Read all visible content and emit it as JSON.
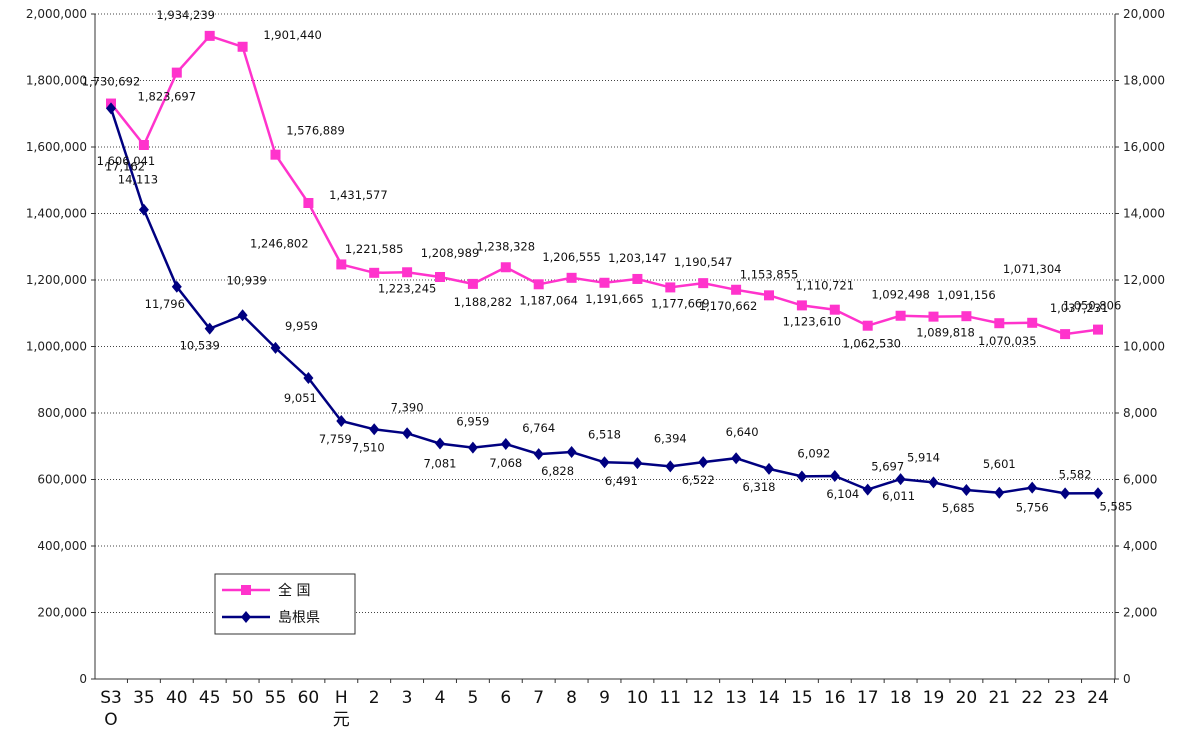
{
  "chart_data": {
    "type": "line",
    "title": "",
    "xlabel": "",
    "ylabel": "",
    "categories": [
      "S30",
      "35",
      "40",
      "45",
      "50",
      "55",
      "60",
      "H元",
      "2",
      "3",
      "4",
      "5",
      "6",
      "7",
      "8",
      "9",
      "10",
      "11",
      "12",
      "13",
      "14",
      "15",
      "16",
      "17",
      "18",
      "19",
      "20",
      "21",
      "22",
      "23",
      "24"
    ],
    "category_display": [
      [
        "S3",
        "O"
      ],
      [
        "35"
      ],
      [
        "40"
      ],
      [
        "45"
      ],
      [
        "50"
      ],
      [
        "55"
      ],
      [
        "60"
      ],
      [
        "H",
        "元"
      ],
      [
        "2"
      ],
      [
        "3"
      ],
      [
        "4"
      ],
      [
        "5"
      ],
      [
        "6"
      ],
      [
        "7"
      ],
      [
        "8"
      ],
      [
        "9"
      ],
      [
        "10"
      ],
      [
        "11"
      ],
      [
        "12"
      ],
      [
        "13"
      ],
      [
        "14"
      ],
      [
        "15"
      ],
      [
        "16"
      ],
      [
        "17"
      ],
      [
        "18"
      ],
      [
        "19"
      ],
      [
        "20"
      ],
      [
        "21"
      ],
      [
        "22"
      ],
      [
        "23"
      ],
      [
        "24"
      ]
    ],
    "y_left": {
      "min": 0,
      "max": 2000000,
      "step": 200000,
      "ticks": [
        "0",
        "200,000",
        "400,000",
        "600,000",
        "800,000",
        "1,000,000",
        "1,200,000",
        "1,400,000",
        "1,600,000",
        "1,800,000",
        "2,000,000"
      ]
    },
    "y_right": {
      "min": 0,
      "max": 20000,
      "step": 2000,
      "ticks": [
        "0",
        "2,000",
        "4,000",
        "6,000",
        "8,000",
        "10,000",
        "12,000",
        "14,000",
        "16,000",
        "18,000",
        "20,000"
      ]
    },
    "grid": "horizontal-dotted",
    "legend_position": "bottom-left",
    "series": [
      {
        "name": "全 国",
        "axis": "left",
        "color": "#ff33cc",
        "marker": "square",
        "values": [
          1730692,
          1606041,
          1823697,
          1934239,
          1901440,
          1576889,
          1431577,
          1246802,
          1221585,
          1223245,
          1208989,
          1188282,
          1238328,
          1187064,
          1206555,
          1191665,
          1203147,
          1177669,
          1190547,
          1170662,
          1153855,
          1123610,
          1110721,
          1062530,
          1092498,
          1089818,
          1091156,
          1070035,
          1071304,
          1037231,
          1050806
        ],
        "labels": [
          "1,730,692",
          "1,606,041",
          "1,823,697",
          "1,934,239",
          "1,901,440",
          "1,576,889",
          "1,431,577",
          "1,246,802",
          "1,221,585",
          "1,223,245",
          "1,208,989",
          "1,188,282",
          "1,238,328",
          "1,187,064",
          "1,206,555",
          "1,191,665",
          "1,203,147",
          "1,177,669",
          "1,190,547",
          "1,170,662",
          "1,153,855",
          "1,123,610",
          "1,110,721",
          "1,062,530",
          "1,092,498",
          "1,089,818",
          "1,091,156",
          "1,070,035",
          "1,071,304",
          "1,037,231",
          "1,050,806"
        ]
      },
      {
        "name": "島根県",
        "axis": "right",
        "color": "#000080",
        "marker": "diamond",
        "values": [
          17162,
          14113,
          11796,
          10539,
          10939,
          9959,
          9051,
          7759,
          7510,
          7390,
          7081,
          6959,
          7068,
          6764,
          6828,
          6518,
          6491,
          6394,
          6522,
          6640,
          6318,
          6092,
          6104,
          5697,
          6011,
          5914,
          5685,
          5601,
          5756,
          5582,
          5585
        ],
        "labels": [
          "17,162",
          "14,113",
          "11,796",
          "10,539",
          "10,939",
          "9,959",
          "9,051",
          "7,759",
          "7,510",
          "7,390",
          "7,081",
          "6,959",
          "7,068",
          "6,764",
          "6,828",
          "6,518",
          "6,491",
          "6,394",
          "6,522",
          "6,640",
          "6,318",
          "6,092",
          "6,104",
          "5,697",
          "6,011",
          "5,914",
          "5,685",
          "5,601",
          "5,756",
          "5,582",
          "5,585"
        ]
      }
    ]
  }
}
